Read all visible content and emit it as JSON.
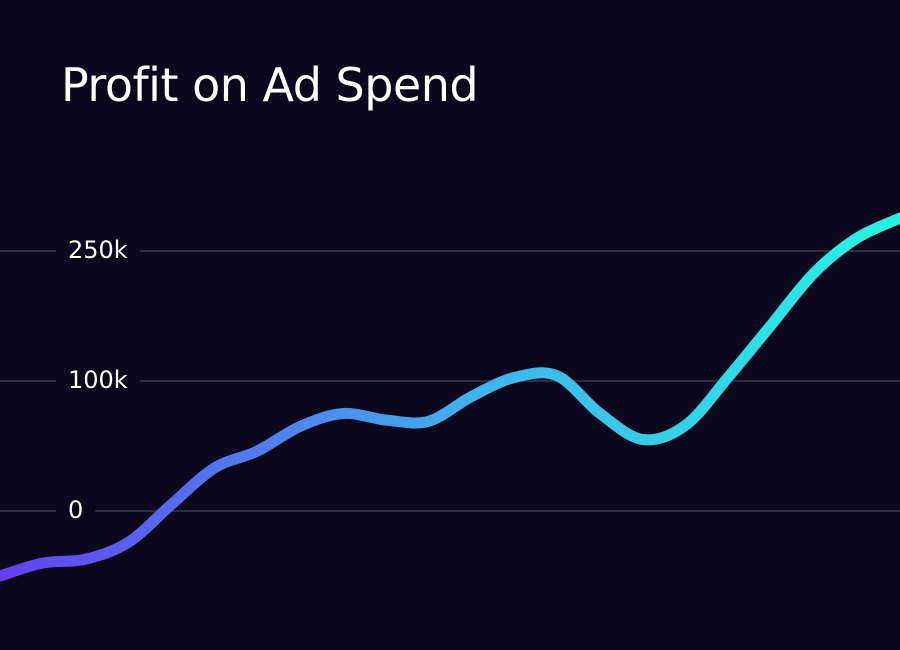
{
  "chart_data": {
    "type": "line",
    "title": "Profit on Ad Spend",
    "xlabel": "",
    "ylabel": "",
    "y_ticks": [
      {
        "value": 0,
        "label": "0"
      },
      {
        "value": 100000,
        "label": "100k"
      },
      {
        "value": 250000,
        "label": "250k"
      }
    ],
    "grid": true,
    "smooth": true,
    "series": [
      {
        "values": [
          -50000,
          -40000,
          -37000,
          -24000,
          5000,
          33000,
          46000,
          65000,
          75000,
          70000,
          69000,
          88000,
          104000,
          106000,
          75000,
          55000,
          66000,
          105000,
          165000,
          225000,
          265000,
          288000
        ]
      }
    ],
    "line_gradient": [
      "#6440f0",
      "#3fb6ec",
      "#28f2e2"
    ],
    "colors": {
      "background": "#0b081d",
      "grid": "#3a374b",
      "text": "#ffffff"
    }
  }
}
